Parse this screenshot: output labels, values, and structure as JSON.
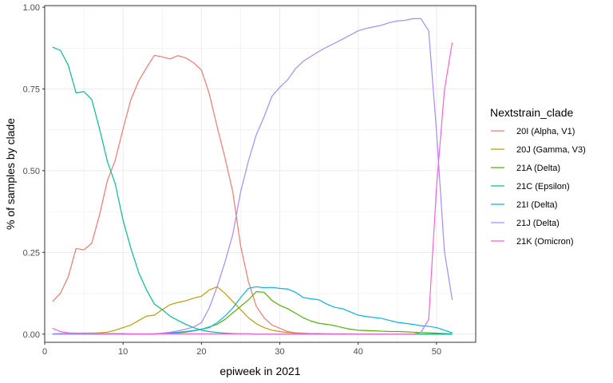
{
  "chart_data": {
    "type": "line",
    "xlabel": "epiweek in 2021",
    "ylabel": "% of samples by clade",
    "xlim": [
      0,
      55
    ],
    "ylim": [
      -0.025,
      1.005
    ],
    "x_ticks": [
      0,
      10,
      20,
      30,
      40,
      50
    ],
    "y_ticks": [
      0.0,
      0.25,
      0.5,
      0.75,
      1.0
    ],
    "y_tick_labels": [
      "0.00",
      "0.25",
      "0.50",
      "0.75",
      "1.00"
    ],
    "grid": true,
    "legend": {
      "title": "Nextstrain_clade",
      "position": "right"
    },
    "x": [
      1,
      2,
      3,
      4,
      5,
      6,
      7,
      8,
      9,
      10,
      11,
      12,
      13,
      14,
      15,
      16,
      17,
      18,
      19,
      20,
      21,
      22,
      23,
      24,
      25,
      26,
      27,
      28,
      29,
      30,
      31,
      32,
      33,
      34,
      35,
      36,
      37,
      38,
      39,
      40,
      41,
      42,
      43,
      44,
      45,
      46,
      47,
      48,
      49,
      50,
      51,
      52
    ],
    "series": [
      {
        "name": "20I (Alpha, V1)",
        "color": "#F8766D",
        "values": [
          0.1,
          0.125,
          0.175,
          0.262,
          0.258,
          0.278,
          0.365,
          0.47,
          0.532,
          0.628,
          0.718,
          0.775,
          0.815,
          0.853,
          0.848,
          0.842,
          0.852,
          0.845,
          0.83,
          0.808,
          0.735,
          0.635,
          0.54,
          0.435,
          0.27,
          0.16,
          0.085,
          0.05,
          0.028,
          0.018,
          0.008,
          0.004,
          0.003,
          0.002,
          0.002,
          0.001,
          0.001,
          0.001,
          0.001,
          0.0,
          0.0,
          0.0,
          0.0,
          0.0,
          0.0,
          0.0,
          0.0,
          0.0,
          0.0,
          0.0,
          0.0,
          0.0
        ]
      },
      {
        "name": "20J (Gamma, V3)",
        "color": "#C49A00",
        "values": [
          0.001,
          0.002,
          0.002,
          0.002,
          0.003,
          0.003,
          0.004,
          0.006,
          0.012,
          0.02,
          0.028,
          0.042,
          0.055,
          0.058,
          0.075,
          0.09,
          0.097,
          0.102,
          0.11,
          0.116,
          0.135,
          0.145,
          0.125,
          0.1,
          0.075,
          0.05,
          0.032,
          0.02,
          0.012,
          0.008,
          0.005,
          0.003,
          0.002,
          0.001,
          0.001,
          0.001,
          0.0,
          0.0,
          0.0,
          0.0,
          0.0,
          0.0,
          0.0,
          0.0,
          0.0,
          0.0,
          0.0,
          0.0,
          0.0,
          0.0,
          0.0,
          0.0
        ]
      },
      {
        "name": "21A (Delta)",
        "color": "#53B400",
        "values": [
          0.0,
          0.0,
          0.0,
          0.0,
          0.0,
          0.0,
          0.0,
          0.0,
          0.0,
          0.0,
          0.0,
          0.0,
          0.0,
          0.001,
          0.002,
          0.003,
          0.004,
          0.006,
          0.01,
          0.015,
          0.022,
          0.03,
          0.045,
          0.065,
          0.085,
          0.105,
          0.13,
          0.128,
          0.103,
          0.088,
          0.078,
          0.064,
          0.05,
          0.04,
          0.033,
          0.03,
          0.026,
          0.02,
          0.015,
          0.012,
          0.011,
          0.01,
          0.009,
          0.008,
          0.008,
          0.007,
          0.006,
          0.005,
          0.004,
          0.003,
          0.002,
          0.001
        ]
      },
      {
        "name": "21C (Epsilon)",
        "color": "#00C094",
        "values": [
          0.878,
          0.868,
          0.823,
          0.738,
          0.742,
          0.718,
          0.628,
          0.528,
          0.46,
          0.348,
          0.262,
          0.188,
          0.135,
          0.092,
          0.075,
          0.055,
          0.042,
          0.03,
          0.02,
          0.012,
          0.008,
          0.005,
          0.003,
          0.002,
          0.001,
          0.001,
          0.0,
          0.0,
          0.0,
          0.0,
          0.0,
          0.0,
          0.0,
          0.0,
          0.0,
          0.0,
          0.0,
          0.0,
          0.0,
          0.0,
          0.0,
          0.0,
          0.0,
          0.0,
          0.0,
          0.0,
          0.0,
          0.0,
          0.0,
          0.0,
          0.0,
          0.0
        ]
      },
      {
        "name": "21I (Delta)",
        "color": "#00B6EB",
        "values": [
          0.0,
          0.0,
          0.0,
          0.0,
          0.0,
          0.0,
          0.0,
          0.0,
          0.0,
          0.0,
          0.0,
          0.0,
          0.0,
          0.0,
          0.002,
          0.004,
          0.006,
          0.008,
          0.011,
          0.015,
          0.02,
          0.035,
          0.055,
          0.08,
          0.112,
          0.14,
          0.145,
          0.142,
          0.143,
          0.14,
          0.138,
          0.128,
          0.112,
          0.108,
          0.105,
          0.092,
          0.082,
          0.078,
          0.068,
          0.058,
          0.054,
          0.051,
          0.048,
          0.042,
          0.036,
          0.033,
          0.03,
          0.026,
          0.024,
          0.02,
          0.012,
          0.004
        ]
      },
      {
        "name": "21J (Delta)",
        "color": "#A58AFF",
        "values": [
          0.0,
          0.0,
          0.0,
          0.0,
          0.0,
          0.0,
          0.0,
          0.0,
          0.0,
          0.0,
          0.0,
          0.0,
          0.0,
          0.001,
          0.003,
          0.006,
          0.01,
          0.015,
          0.022,
          0.035,
          0.08,
          0.145,
          0.22,
          0.305,
          0.435,
          0.53,
          0.61,
          0.665,
          0.728,
          0.755,
          0.778,
          0.812,
          0.835,
          0.85,
          0.865,
          0.878,
          0.89,
          0.902,
          0.915,
          0.928,
          0.935,
          0.94,
          0.945,
          0.953,
          0.958,
          0.96,
          0.965,
          0.965,
          0.928,
          0.62,
          0.255,
          0.105
        ]
      },
      {
        "name": "21K (Omicron)",
        "color": "#FB61D7",
        "values": [
          0.018,
          0.008,
          0.004,
          0.003,
          0.003,
          0.003,
          0.002,
          0.002,
          0.002,
          0.002,
          0.001,
          0.001,
          0.001,
          0.001,
          0.001,
          0.001,
          0.001,
          0.001,
          0.001,
          0.001,
          0.001,
          0.001,
          0.001,
          0.001,
          0.001,
          0.001,
          0.0,
          0.0,
          0.0,
          0.0,
          0.0,
          0.0,
          0.0,
          0.0,
          0.0,
          0.0,
          0.0,
          0.0,
          0.0,
          0.0,
          0.0,
          0.0,
          0.0,
          0.0,
          0.0,
          0.0,
          0.0,
          0.005,
          0.045,
          0.45,
          0.745,
          0.892
        ]
      }
    ]
  }
}
